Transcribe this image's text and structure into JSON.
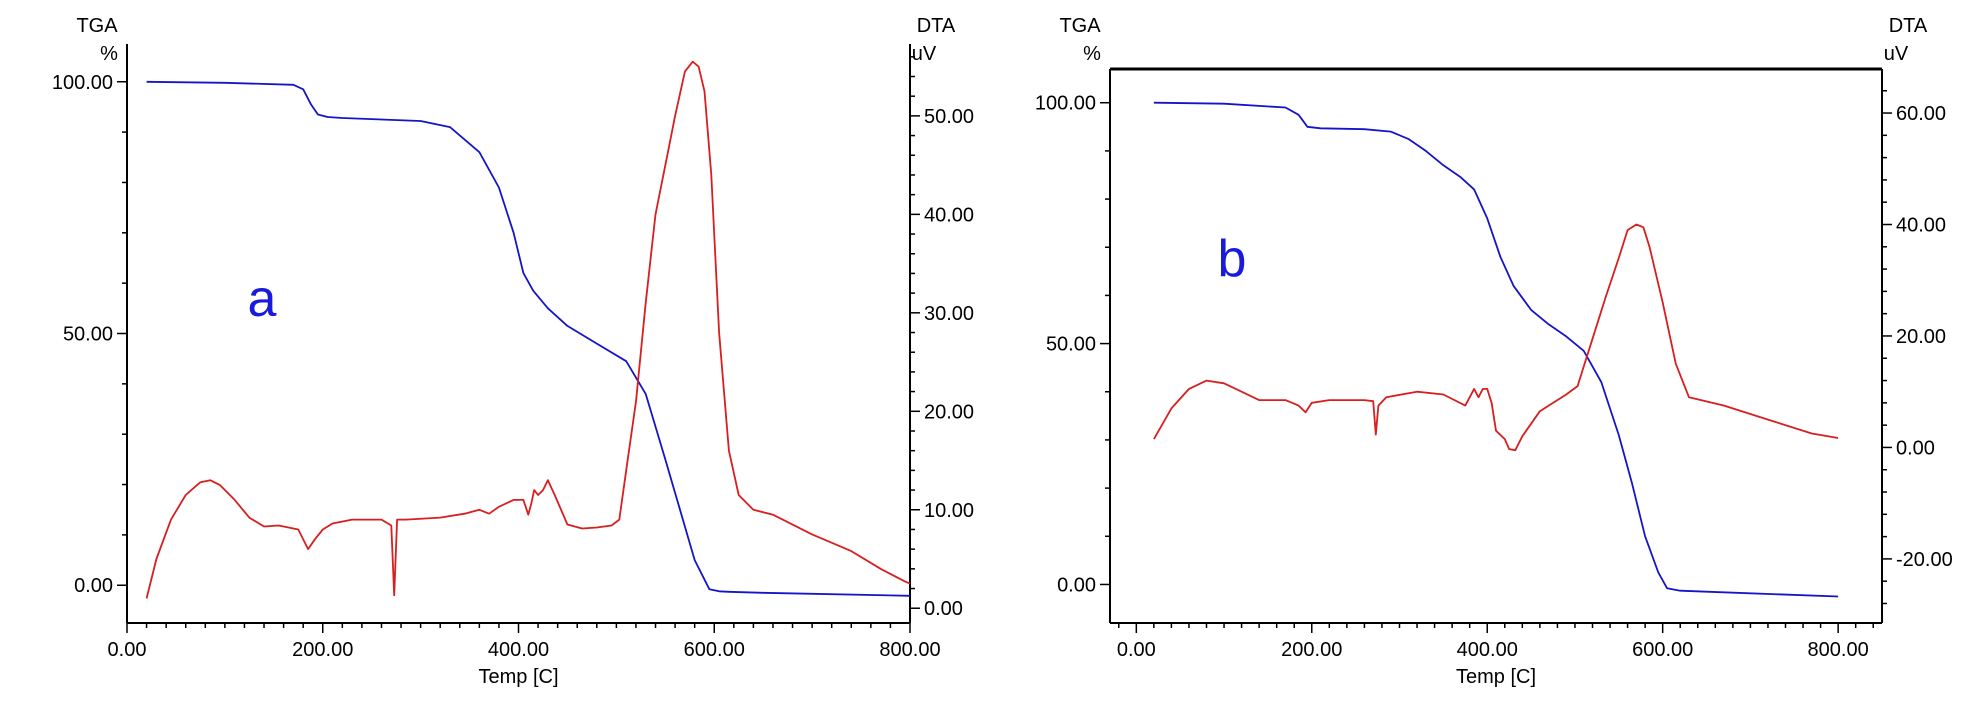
{
  "chart_data": [
    {
      "type": "line",
      "panel_label": "a",
      "left_axis_title": [
        "TGA",
        "%"
      ],
      "right_axis_title": [
        "DTA",
        "uV"
      ],
      "xlabel": "Temp  [C]",
      "xlim": [
        0,
        800
      ],
      "xticks": [
        0,
        200,
        400,
        600,
        800
      ],
      "xtick_labels": [
        "0.00",
        "200.00",
        "400.00",
        "600.00",
        "800.00"
      ],
      "ylim_left": [
        -7.5,
        107.5
      ],
      "yticks_left": [
        0,
        50,
        100
      ],
      "ytick_labels_left": [
        "0.00",
        "50.00",
        "100.00"
      ],
      "ylim_right": [
        -1.5,
        57.3
      ],
      "yticks_right": [
        0,
        10,
        20,
        30,
        40,
        50
      ],
      "ytick_labels_right": [
        "0.00",
        "10.00",
        "20.00",
        "30.00",
        "40.00",
        "50.00"
      ],
      "series": [
        {
          "axis": "left",
          "color": "#1515c8",
          "x": [
            20,
            100,
            170,
            180,
            188,
            195,
            205,
            220,
            300,
            330,
            360,
            380,
            395,
            405,
            415,
            430,
            450,
            480,
            510,
            530,
            550,
            565,
            580,
            595,
            605,
            615,
            650,
            800
          ],
          "y": [
            100,
            99.8,
            99.4,
            98.5,
            95.5,
            93.5,
            93,
            92.8,
            92.2,
            91,
            86,
            79,
            70,
            62,
            58.5,
            55,
            51.5,
            48,
            44.5,
            38,
            25,
            15,
            5,
            -0.8,
            -1.2,
            -1.3,
            -1.5,
            -2.1
          ]
        },
        {
          "axis": "right",
          "color": "#d81e1e",
          "x": [
            20,
            30,
            45,
            60,
            75,
            85,
            95,
            110,
            125,
            140,
            155,
            175,
            185,
            192,
            200,
            210,
            230,
            260,
            270,
            273,
            276,
            285,
            320,
            345,
            360,
            370,
            380,
            395,
            405,
            410,
            413,
            416,
            420,
            425,
            430,
            437,
            450,
            465,
            480,
            495,
            503,
            510,
            520,
            530,
            540,
            552,
            560,
            570,
            578,
            584,
            590,
            597,
            605,
            615,
            625,
            640,
            660,
            700,
            740,
            770,
            795,
            800
          ],
          "y": [
            1,
            5,
            9,
            11.5,
            12.8,
            13,
            12.5,
            11,
            9.2,
            8.3,
            8.4,
            8.0,
            6.0,
            7.0,
            8.0,
            8.6,
            9.0,
            9.0,
            8.4,
            1.3,
            9.0,
            9.0,
            9.2,
            9.6,
            10,
            9.6,
            10.3,
            11,
            11,
            9.5,
            10.6,
            12,
            11.5,
            12,
            13,
            11.5,
            8.5,
            8.1,
            8.2,
            8.4,
            9,
            14,
            21,
            31,
            40,
            46,
            50,
            54.5,
            55.5,
            55,
            52.5,
            44,
            28,
            16,
            11.5,
            10,
            9.5,
            7.5,
            5.8,
            4,
            2.7,
            2.5
          ]
        }
      ]
    },
    {
      "type": "line",
      "panel_label": "b",
      "left_axis_title": [
        "TGA",
        "%"
      ],
      "right_axis_title": [
        "DTA",
        "uV"
      ],
      "xlabel": "Temp  [C]",
      "xlim": [
        -30,
        850
      ],
      "xticks": [
        0,
        200,
        400,
        600,
        800
      ],
      "xtick_labels": [
        "0.00",
        "200.00",
        "400.00",
        "600.00",
        "800.00"
      ],
      "ylim_left": [
        -8,
        107
      ],
      "yticks_left": [
        0,
        50,
        100
      ],
      "ytick_labels_left": [
        "0.00",
        "50.00",
        "100.00"
      ],
      "ylim_right": [
        -31.5,
        67.9
      ],
      "yticks_right": [
        -20,
        0,
        20,
        40,
        60
      ],
      "ytick_labels_right": [
        "-20.00",
        "0.00",
        "20.00",
        "40.00",
        "60.00"
      ],
      "series": [
        {
          "axis": "left",
          "color": "#1515c8",
          "x": [
            20,
            100,
            170,
            185,
            195,
            210,
            260,
            290,
            310,
            330,
            350,
            370,
            385,
            400,
            415,
            430,
            450,
            470,
            490,
            510,
            530,
            550,
            565,
            580,
            595,
            605,
            620,
            650,
            800
          ],
          "y": [
            100,
            99.8,
            99,
            97.5,
            95,
            94.7,
            94.5,
            94,
            92.5,
            90,
            87,
            84.5,
            82,
            76,
            68,
            62,
            57,
            54,
            51.5,
            48.5,
            42,
            31,
            21,
            10,
            2.5,
            -0.8,
            -1.3,
            -1.5,
            -2.5
          ]
        },
        {
          "axis": "right",
          "color": "#d81e1e",
          "x": [
            20,
            40,
            60,
            80,
            100,
            120,
            140,
            170,
            185,
            193,
            200,
            220,
            260,
            270,
            273,
            276,
            285,
            320,
            350,
            375,
            385,
            390,
            395,
            400,
            405,
            410,
            420,
            425,
            432,
            440,
            460,
            490,
            503,
            510,
            520,
            535,
            550,
            560,
            570,
            578,
            585,
            600,
            615,
            630,
            670,
            720,
            770,
            800
          ],
          "y": [
            1.5,
            7,
            10.5,
            12,
            11.5,
            10,
            8.5,
            8.5,
            7.5,
            6.3,
            8,
            8.5,
            8.5,
            8.3,
            2.3,
            7.5,
            9,
            10,
            9.5,
            7.5,
            10.5,
            9,
            10.5,
            10.5,
            8,
            3,
            1.5,
            -0.3,
            -0.5,
            2,
            6.5,
            9.5,
            11,
            14.5,
            19.5,
            27,
            34,
            39,
            40,
            39.5,
            36,
            26,
            15,
            9,
            7.5,
            5,
            2.5,
            1.7
          ]
        }
      ]
    }
  ]
}
